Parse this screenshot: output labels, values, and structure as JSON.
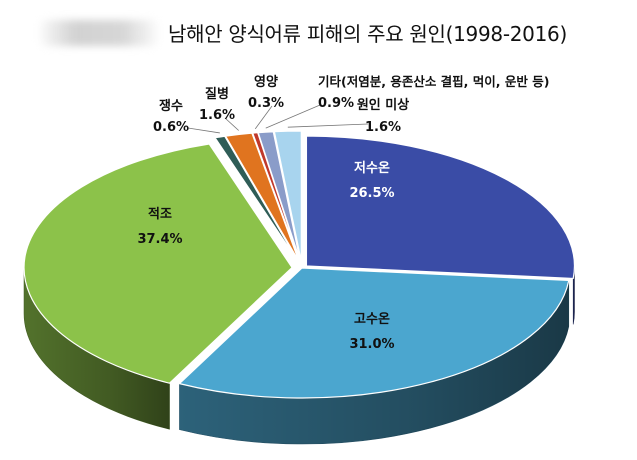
{
  "title": "남해안 양식어류 피해의 주요 원인(1998-2016)",
  "chart_data": {
    "type": "pie",
    "title": "남해안 양식어류 피해의 주요 원인(1998-2016)",
    "slices": [
      {
        "label": "저수온",
        "value": 26.5,
        "value_text": "26.5%",
        "color": "#3a4ca6"
      },
      {
        "label": "고수온",
        "value": 31.0,
        "value_text": "31.0%",
        "color": "#4ba6cf"
      },
      {
        "label": "적조",
        "value": 37.4,
        "value_text": "37.4%",
        "color": "#8cc24a"
      },
      {
        "label": "쟁수",
        "value": 0.6,
        "value_text": "0.6%",
        "color": "#2f5d57"
      },
      {
        "label": "질병",
        "value": 1.6,
        "value_text": "1.6%",
        "color": "#e0741f"
      },
      {
        "label": "영양",
        "value": 0.3,
        "value_text": "0.3%",
        "color": "#c0392b"
      },
      {
        "label": "기타(저염분, 용존산소 결핍, 먹이, 운반 등)",
        "value": 0.9,
        "value_text": "0.9%",
        "color": "#8a9cc9"
      },
      {
        "label": "원인 미상",
        "value": 1.6,
        "value_text": "1.6%",
        "color": "#a8d4ee"
      }
    ]
  }
}
